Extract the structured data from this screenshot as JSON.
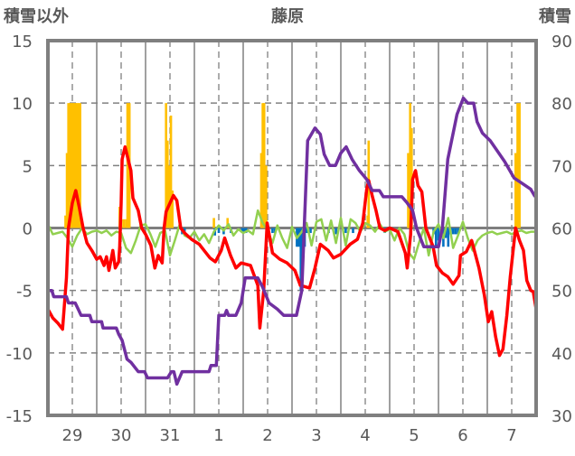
{
  "chart_data": {
    "type": "bar",
    "title": "藤原",
    "ylabel_left": "積雪以外",
    "ylabel_right": "積雪",
    "ylim_left": [
      -15,
      15
    ],
    "ylim_right": [
      30,
      90
    ],
    "yticks_left": [
      "15",
      "10",
      "5",
      "0",
      "-5",
      "-10",
      "-15"
    ],
    "yticks_right": [
      "90",
      "80",
      "70",
      "60",
      "50",
      "40",
      "30"
    ],
    "xlim_days": [
      0,
      10
    ],
    "xtick_labels": [
      "29",
      "30",
      "31",
      "1",
      "2",
      "3",
      "4",
      "5",
      "6",
      "7"
    ],
    "grid": true,
    "colors": {
      "precip_positive": "#ffc000",
      "precip_negative": "#0070c0",
      "temperature": "#ff0000",
      "green_series": "#92d050",
      "snow_depth": "#7030a0",
      "frame": "#7f7f7f",
      "grid": "#808080"
    },
    "bars_positive": [
      [
        0.36,
        1
      ],
      [
        0.39,
        6
      ],
      [
        0.42,
        10
      ],
      [
        0.45,
        10
      ],
      [
        0.48,
        10
      ],
      [
        0.51,
        10
      ],
      [
        0.54,
        10
      ],
      [
        0.57,
        10
      ],
      [
        0.6,
        10
      ],
      [
        0.63,
        10
      ],
      [
        0.66,
        10
      ],
      [
        1.47,
        1.7
      ],
      [
        1.5,
        0.7
      ],
      [
        1.55,
        0.7
      ],
      [
        1.6,
        0.7
      ],
      [
        1.63,
        10
      ],
      [
        1.67,
        10
      ],
      [
        2.42,
        10
      ],
      [
        2.45,
        7
      ],
      [
        2.48,
        5
      ],
      [
        2.52,
        9
      ],
      [
        2.55,
        3
      ],
      [
        3.4,
        0.8
      ],
      [
        3.68,
        0.8
      ],
      [
        4.37,
        6
      ],
      [
        4.4,
        10
      ],
      [
        4.43,
        10
      ],
      [
        4.47,
        5
      ],
      [
        6.55,
        1
      ],
      [
        6.57,
        7
      ],
      [
        7.38,
        6
      ],
      [
        7.42,
        10
      ],
      [
        7.45,
        8
      ],
      [
        9.58,
        6
      ],
      [
        9.62,
        10
      ],
      [
        9.66,
        10
      ]
    ],
    "bars_negative": [
      [
        2.75,
        -0.5
      ],
      [
        2.8,
        -0.5
      ],
      [
        3.42,
        -0.6
      ],
      [
        3.5,
        -0.4
      ],
      [
        3.6,
        -0.5
      ],
      [
        3.75,
        -0.4
      ],
      [
        3.98,
        -0.4
      ],
      [
        4.02,
        -0.4
      ],
      [
        4.06,
        -0.4
      ],
      [
        4.6,
        -0.4
      ],
      [
        4.65,
        -0.4
      ],
      [
        5.1,
        -1.5
      ],
      [
        5.14,
        -1.5
      ],
      [
        5.18,
        -5
      ],
      [
        5.22,
        -3
      ],
      [
        5.26,
        -1.5
      ],
      [
        5.3,
        -0.4
      ],
      [
        5.38,
        -0.4
      ],
      [
        5.75,
        -0.4
      ],
      [
        5.9,
        -0.5
      ],
      [
        6.1,
        -0.4
      ],
      [
        6.25,
        -0.4
      ],
      [
        6.9,
        -0.4
      ],
      [
        7.9,
        -0.5
      ],
      [
        7.95,
        -1.5
      ],
      [
        8.0,
        -1
      ],
      [
        8.05,
        -0.6
      ],
      [
        8.1,
        -1.5
      ],
      [
        8.15,
        -0.8
      ],
      [
        8.2,
        -1.5
      ],
      [
        8.25,
        -0.5
      ],
      [
        8.3,
        -0.5
      ],
      [
        8.35,
        -0.5
      ],
      [
        8.4,
        -0.5
      ]
    ],
    "temperature": [
      [
        0,
        -6.5
      ],
      [
        0.1,
        -7.2
      ],
      [
        0.2,
        -7.6
      ],
      [
        0.3,
        -8.1
      ],
      [
        0.38,
        -4
      ],
      [
        0.42,
        0
      ],
      [
        0.5,
        2
      ],
      [
        0.57,
        3
      ],
      [
        0.65,
        1.5
      ],
      [
        0.72,
        0
      ],
      [
        0.8,
        -1.2
      ],
      [
        0.9,
        -1.8
      ],
      [
        1.0,
        -2.5
      ],
      [
        1.07,
        -2.3
      ],
      [
        1.15,
        -3
      ],
      [
        1.2,
        -2.3
      ],
      [
        1.25,
        -3.4
      ],
      [
        1.33,
        -1.8
      ],
      [
        1.38,
        -3.2
      ],
      [
        1.45,
        -2.7
      ],
      [
        1.47,
        -1.5
      ],
      [
        1.5,
        2
      ],
      [
        1.52,
        5.5
      ],
      [
        1.58,
        6.5
      ],
      [
        1.7,
        4.6
      ],
      [
        1.74,
        2.4
      ],
      [
        1.85,
        1.4
      ],
      [
        1.92,
        0
      ],
      [
        2.0,
        -0.5
      ],
      [
        2.11,
        -1.4
      ],
      [
        2.19,
        -3.2
      ],
      [
        2.26,
        -2.2
      ],
      [
        2.34,
        -2.8
      ],
      [
        2.38,
        0
      ],
      [
        2.42,
        1.3
      ],
      [
        2.57,
        2.6
      ],
      [
        2.64,
        2.2
      ],
      [
        2.72,
        0
      ],
      [
        2.8,
        -0.4
      ],
      [
        2.94,
        -0.9
      ],
      [
        3.1,
        -1.3
      ],
      [
        3.2,
        -1.8
      ],
      [
        3.32,
        -2.4
      ],
      [
        3.43,
        -2.7
      ],
      [
        3.55,
        -1.8
      ],
      [
        3.62,
        -0.8
      ],
      [
        3.74,
        -2.2
      ],
      [
        3.85,
        -3.2
      ],
      [
        3.96,
        -2.8
      ],
      [
        4.15,
        -3
      ],
      [
        4.3,
        -4.6
      ],
      [
        4.34,
        -8
      ],
      [
        4.42,
        -5
      ],
      [
        4.49,
        0.4
      ],
      [
        4.6,
        -2
      ],
      [
        4.75,
        -2.5
      ],
      [
        4.9,
        -2.8
      ],
      [
        5.06,
        -3.4
      ],
      [
        5.17,
        -4.6
      ],
      [
        5.36,
        -4.8
      ],
      [
        5.47,
        -3.2
      ],
      [
        5.58,
        -1.3
      ],
      [
        5.74,
        -1.8
      ],
      [
        5.85,
        -2.4
      ],
      [
        6.0,
        -2.1
      ],
      [
        6.19,
        -1.3
      ],
      [
        6.34,
        -0.9
      ],
      [
        6.45,
        0.4
      ],
      [
        6.53,
        3.1
      ],
      [
        6.57,
        3.8
      ],
      [
        6.64,
        2.6
      ],
      [
        6.72,
        1.4
      ],
      [
        6.8,
        0
      ],
      [
        6.9,
        -0.2
      ],
      [
        7.0,
        0
      ],
      [
        7.17,
        -0.3
      ],
      [
        7.32,
        -2
      ],
      [
        7.36,
        -3.2
      ],
      [
        7.43,
        -0.5
      ],
      [
        7.47,
        3.9
      ],
      [
        7.53,
        4.6
      ],
      [
        7.58,
        3.4
      ],
      [
        7.66,
        2.9
      ],
      [
        7.74,
        0
      ],
      [
        7.89,
        -1.5
      ],
      [
        7.96,
        -3
      ],
      [
        8.08,
        -3.6
      ],
      [
        8.19,
        -3.9
      ],
      [
        8.3,
        -4.5
      ],
      [
        8.42,
        -3.8
      ],
      [
        8.45,
        -2.2
      ],
      [
        8.57,
        -1.9
      ],
      [
        8.68,
        -1
      ],
      [
        8.83,
        -3.2
      ],
      [
        8.94,
        -5.4
      ],
      [
        9.02,
        -7.5
      ],
      [
        9.09,
        -6.7
      ],
      [
        9.17,
        -8.7
      ],
      [
        9.25,
        -10.2
      ],
      [
        9.32,
        -9.7
      ],
      [
        9.4,
        -7
      ],
      [
        9.47,
        -3.9
      ],
      [
        9.58,
        0
      ],
      [
        9.66,
        -1
      ],
      [
        9.74,
        -1.8
      ],
      [
        9.81,
        -4.2
      ],
      [
        9.89,
        -5
      ],
      [
        9.94,
        -5.1
      ],
      [
        10,
        -6.5
      ]
    ],
    "snow_depth": [
      [
        0,
        50
      ],
      [
        0.08,
        50
      ],
      [
        0.12,
        49
      ],
      [
        0.38,
        49
      ],
      [
        0.42,
        48
      ],
      [
        0.56,
        48
      ],
      [
        0.62,
        47
      ],
      [
        0.68,
        46
      ],
      [
        0.86,
        46
      ],
      [
        0.9,
        45
      ],
      [
        1.1,
        45
      ],
      [
        1.13,
        44
      ],
      [
        1.4,
        44
      ],
      [
        1.45,
        43
      ],
      [
        1.52,
        42
      ],
      [
        1.62,
        39
      ],
      [
        1.7,
        38.5
      ],
      [
        1.85,
        37
      ],
      [
        1.98,
        37
      ],
      [
        2.04,
        36
      ],
      [
        2.45,
        36
      ],
      [
        2.53,
        37
      ],
      [
        2.58,
        37
      ],
      [
        2.64,
        35
      ],
      [
        2.75,
        37
      ],
      [
        3.3,
        37
      ],
      [
        3.34,
        38
      ],
      [
        3.45,
        38
      ],
      [
        3.5,
        46
      ],
      [
        3.62,
        46
      ],
      [
        3.66,
        46.8
      ],
      [
        3.7,
        46
      ],
      [
        3.85,
        46
      ],
      [
        3.96,
        48
      ],
      [
        4.04,
        52
      ],
      [
        4.3,
        52
      ],
      [
        4.4,
        50.5
      ],
      [
        4.53,
        48
      ],
      [
        4.7,
        47
      ],
      [
        4.83,
        46
      ],
      [
        5.09,
        46
      ],
      [
        5.2,
        50
      ],
      [
        5.25,
        60
      ],
      [
        5.32,
        74
      ],
      [
        5.47,
        76
      ],
      [
        5.58,
        75
      ],
      [
        5.66,
        71.8
      ],
      [
        5.77,
        70
      ],
      [
        5.89,
        70
      ],
      [
        6.0,
        72
      ],
      [
        6.11,
        73
      ],
      [
        6.23,
        71
      ],
      [
        6.38,
        69.2
      ],
      [
        6.53,
        67.8
      ],
      [
        6.64,
        66
      ],
      [
        6.79,
        66
      ],
      [
        6.87,
        65
      ],
      [
        7.25,
        65
      ],
      [
        7.36,
        64
      ],
      [
        7.47,
        62.8
      ],
      [
        7.55,
        60
      ],
      [
        7.7,
        57
      ],
      [
        8.0,
        57
      ],
      [
        8.08,
        60
      ],
      [
        8.19,
        71
      ],
      [
        8.38,
        78.2
      ],
      [
        8.51,
        80.8
      ],
      [
        8.6,
        80
      ],
      [
        8.72,
        80
      ],
      [
        8.79,
        77
      ],
      [
        8.9,
        75.2
      ],
      [
        9.06,
        74
      ],
      [
        9.2,
        72.4
      ],
      [
        9.36,
        70.6
      ],
      [
        9.55,
        68
      ],
      [
        9.74,
        67
      ],
      [
        9.89,
        66.2
      ],
      [
        9.98,
        65
      ]
    ],
    "green_series_step_days": 0.1,
    "green_series": [
      0.3,
      -0.5,
      -0.4,
      -0.3,
      -0.8,
      -1.5,
      -0.6,
      0,
      -0.5,
      -0.3,
      -0.2,
      -0.4,
      -0.2,
      -0.6,
      -0.3,
      -0.4,
      -1.6,
      -2.0,
      -1.0,
      0.2,
      0.3,
      -0.5,
      -1.5,
      -0.4,
      -0.2,
      -2.2,
      -1.0,
      0.3,
      -0.6,
      -0.8,
      -0.3,
      -1.0,
      -0.5,
      -1.2,
      -0.3,
      0.2,
      -0.2,
      0.3,
      -0.6,
      -0.1,
      -0.4,
      -0.2,
      -0.5,
      1.4,
      0.4,
      -0.2,
      -1.2,
      0.2,
      -0.8,
      -1.6,
      0.1,
      -0.8,
      -0.3,
      0.4,
      -1.4,
      0.5,
      0.7,
      -1.0,
      0.6,
      -1.2,
      0.8,
      -1.4,
      0.7,
      0.4,
      -0.3,
      0.4,
      0.2,
      -0.3,
      0.3,
      -0.3,
      -0.1,
      -1.0,
      0,
      -0.5,
      -2.0,
      -2.5,
      -1.2,
      0,
      -2.2,
      -0.3,
      0.3,
      -0.8,
      0.8,
      -1.6,
      -0.6,
      0.5,
      -0.8,
      -1.8,
      -1.0,
      -0.6,
      -0.4,
      -0.3,
      -0.5,
      -0.4,
      -0.3,
      -0.5,
      -0.3,
      -0.2,
      -0.4,
      -0.3,
      -0.3
    ]
  }
}
